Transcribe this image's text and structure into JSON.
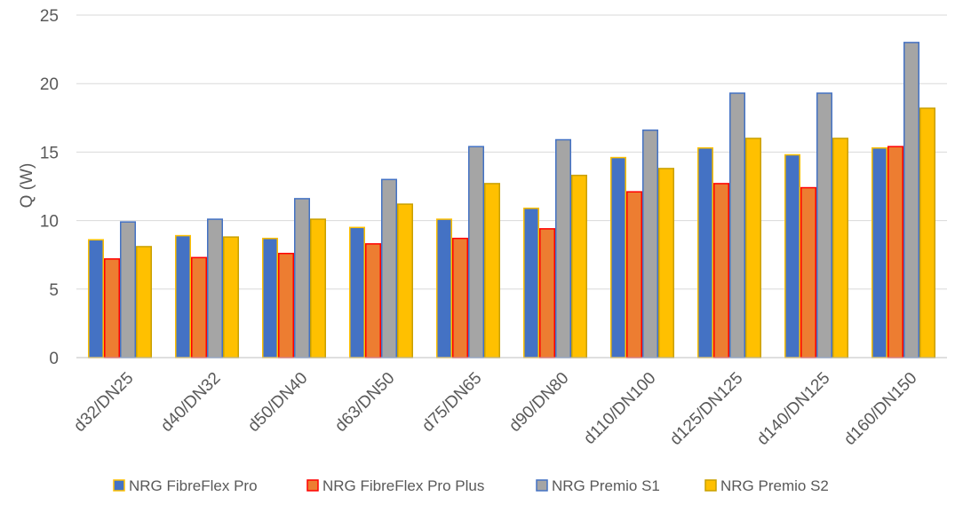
{
  "chart_data": {
    "type": "bar",
    "title": "",
    "xlabel": "",
    "ylabel": "Q (W)",
    "ylim": [
      0,
      25
    ],
    "yticks": [
      0,
      5,
      10,
      15,
      20,
      25
    ],
    "grid": true,
    "legend_position": "bottom",
    "categories": [
      "d32/DN25",
      "d40/DN32",
      "d50/DN40",
      "d63/DN50",
      "d75/DN65",
      "d90/DN80",
      "d110/DN100",
      "d125/DN125",
      "d140/DN125",
      "d160/DN150"
    ],
    "series": [
      {
        "name": "NRG FibreFlex Pro",
        "fill": "#4472C4",
        "stroke": "#FFC000",
        "values": [
          8.6,
          8.9,
          8.7,
          9.5,
          10.1,
          10.9,
          14.6,
          15.3,
          14.8,
          15.3
        ]
      },
      {
        "name": "NRG FibreFlex Pro Plus",
        "fill": "#ED7D31",
        "stroke": "#FF0000",
        "values": [
          7.2,
          7.3,
          7.6,
          8.3,
          8.7,
          9.4,
          12.1,
          12.7,
          12.4,
          15.4
        ]
      },
      {
        "name": "NRG Premio S1",
        "fill": "#A5A5A5",
        "stroke": "#4472C4",
        "values": [
          9.9,
          10.1,
          11.6,
          13.0,
          15.4,
          15.9,
          16.6,
          19.3,
          19.3,
          23.0
        ]
      },
      {
        "name": "NRG Premio S2",
        "fill": "#FFC000",
        "stroke": "#C9A000",
        "values": [
          8.1,
          8.8,
          10.1,
          11.2,
          12.7,
          13.3,
          13.8,
          16.0,
          16.0,
          18.2
        ]
      }
    ]
  }
}
